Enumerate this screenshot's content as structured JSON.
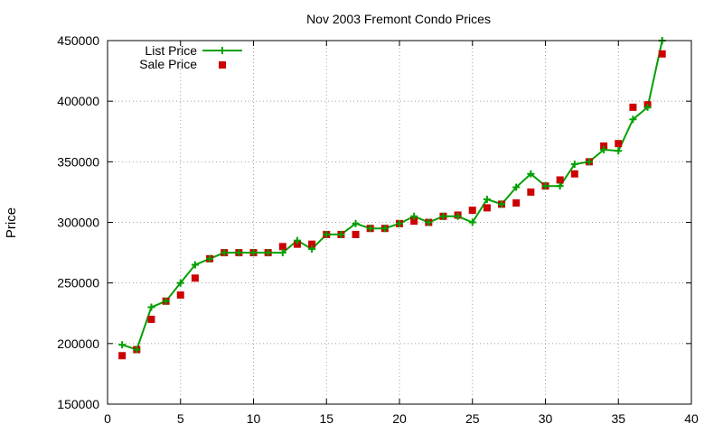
{
  "chart_data": {
    "type": "line",
    "title": "Nov 2003 Fremont Condo Prices",
    "xlabel": "",
    "ylabel": "Price",
    "xlim": [
      0,
      40
    ],
    "ylim": [
      150000,
      450000
    ],
    "xticks": [
      0,
      5,
      10,
      15,
      20,
      25,
      30,
      35,
      40
    ],
    "yticks": [
      150000,
      200000,
      250000,
      300000,
      350000,
      400000,
      450000
    ],
    "grid": true,
    "legend_position": "top-left",
    "series": [
      {
        "name": "List Price",
        "style": "line+cross",
        "color": "#00a000",
        "x": [
          1,
          2,
          3,
          4,
          5,
          6,
          7,
          8,
          9,
          10,
          11,
          12,
          13,
          14,
          15,
          16,
          17,
          18,
          19,
          20,
          21,
          22,
          23,
          24,
          25,
          26,
          27,
          28,
          29,
          30,
          31,
          32,
          33,
          34,
          35,
          36,
          37,
          38
        ],
        "y": [
          199000,
          195000,
          230000,
          235000,
          250000,
          265000,
          270000,
          275000,
          275000,
          275000,
          275000,
          275000,
          285000,
          278000,
          290000,
          290000,
          299000,
          295000,
          295000,
          299000,
          305000,
          300000,
          305000,
          305000,
          300000,
          319000,
          315000,
          329000,
          340000,
          330000,
          330000,
          348000,
          350000,
          360000,
          359000,
          385000,
          395000,
          450000
        ]
      },
      {
        "name": "Sale Price",
        "style": "square",
        "color": "#cc0000",
        "x": [
          1,
          2,
          3,
          4,
          5,
          6,
          7,
          8,
          9,
          10,
          11,
          12,
          13,
          14,
          15,
          16,
          17,
          18,
          19,
          20,
          21,
          22,
          23,
          24,
          25,
          26,
          27,
          28,
          29,
          30,
          31,
          32,
          33,
          34,
          35,
          36,
          37,
          38
        ],
        "y": [
          190000,
          195000,
          220000,
          235000,
          240000,
          254000,
          270000,
          275000,
          275000,
          275000,
          275000,
          280000,
          282000,
          282000,
          290000,
          290000,
          290000,
          295000,
          295000,
          299000,
          301000,
          300000,
          305000,
          306000,
          310000,
          312000,
          315000,
          316000,
          325000,
          330000,
          335000,
          340000,
          350000,
          363000,
          365000,
          395000,
          397000,
          439000
        ]
      }
    ]
  }
}
